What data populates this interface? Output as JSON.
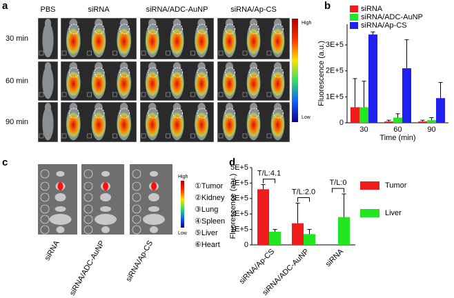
{
  "panel_a": {
    "label": "a",
    "columns": [
      "PBS",
      "siRNA",
      "siRNA/ADC-AuNP",
      "siRNA/Ap-CS"
    ],
    "rows": [
      "30 min",
      "60 min",
      "90 min"
    ],
    "colorbar_high": "High",
    "colorbar_low": "Low"
  },
  "panel_c": {
    "label": "c",
    "samples": [
      "siRNA",
      "siRNA/ADC-AuNP",
      "siRNA/Ap-CS"
    ],
    "organs": [
      "①Tumor",
      "②Kidney",
      "③Lung",
      "④Spleen",
      "⑤Liver",
      "⑥Heart"
    ],
    "colorbar_high": "High",
    "colorbar_low": "Low"
  },
  "chart_data": [
    {
      "type": "bar",
      "panel_label": "b",
      "y_label": "Fluorescence (a.u.)",
      "x_label": "Time (min)",
      "categories": [
        "30",
        "60",
        "90"
      ],
      "series": [
        {
          "name": "siRNA",
          "color": "#ee1c1c",
          "values": [
            60000,
            5000,
            5000
          ],
          "errors": [
            110000,
            5000,
            5000
          ]
        },
        {
          "name": "siRNA/ADC-AuNP",
          "color": "#22e622",
          "values": [
            60000,
            20000,
            10000
          ],
          "errors": [
            100000,
            15000,
            10000
          ]
        },
        {
          "name": "siRNA/Ap-CS",
          "color": "#1f1ff0",
          "values": [
            340000,
            210000,
            95000
          ],
          "errors": [
            10000,
            110000,
            60000
          ]
        }
      ],
      "ylim": [
        0,
        380000
      ],
      "yticks": [
        0,
        {
          "value": 100000,
          "label": "1E+5"
        },
        {
          "value": 200000,
          "label": "2E+5"
        },
        {
          "value": 300000,
          "label": "3E+5"
        }
      ]
    },
    {
      "type": "bar",
      "panel_label": "d",
      "y_label": "Fluorescence (a.u.)",
      "categories": [
        "siRNA/Ap-CS",
        "siRNA/ADC-AuNP",
        "siRNA"
      ],
      "series": [
        {
          "name": "Tumor",
          "color": "#ee1c1c",
          "values": [
            360000,
            140000,
            0
          ],
          "errors": [
            30000,
            130000,
            0
          ]
        },
        {
          "name": "Liver",
          "color": "#22e622",
          "values": [
            85000,
            70000,
            180000
          ],
          "errors": [
            15000,
            30000,
            150000
          ]
        }
      ],
      "annotations": [
        "T/L:4.1",
        "T/L:2.0",
        "T/L:0"
      ],
      "ylim": [
        0,
        500000
      ],
      "yticks": [
        0,
        {
          "value": 100000,
          "label": "1E+5"
        },
        {
          "value": 200000,
          "label": "2E+5"
        },
        {
          "value": 300000,
          "label": "3E+5"
        },
        {
          "value": 400000,
          "label": "4E+5"
        },
        {
          "value": 500000,
          "label": "5E+5"
        }
      ]
    }
  ]
}
